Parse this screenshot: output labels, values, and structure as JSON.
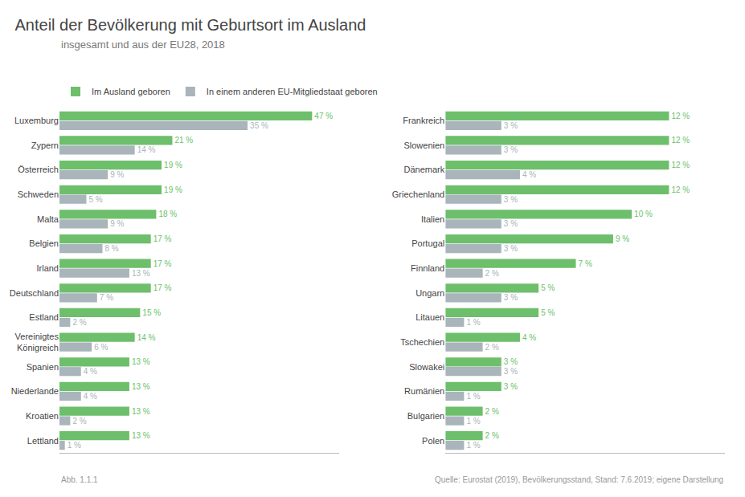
{
  "chart_data": [
    {
      "type": "bar",
      "orientation": "horizontal",
      "title": "Anteil der Bevölkerung mit Geburtsort im Ausland",
      "subtitle": "insgesamt und aus der EU28, 2018",
      "annotations": [
        "Abb. 1.1.1",
        "Quelle: Eurostat (2019), Bevölkerungsstand, Stand: 7.6.2019; eigene Darstellung"
      ],
      "categories": [
        "Luxemburg",
        "Zypern",
        "Österreich",
        "Schweden",
        "Malta",
        "Belgien",
        "Irland",
        "Deutschland",
        "Estland",
        "Vereinigtes\nKönigreich",
        "Spanien",
        "Niederlande",
        "Kroatien",
        "Lettland"
      ],
      "series": [
        {
          "name": "Im Ausland geboren",
          "color": "#6dbf6b",
          "values": [
            47,
            21,
            19,
            19,
            18,
            17,
            17,
            17,
            15,
            14,
            13,
            13,
            13,
            13
          ],
          "value_labels": [
            "47 %",
            "21 %",
            "19 %",
            "19 %",
            "18 %",
            "17 %",
            "17 %",
            "17 %",
            "15 %",
            "14 %",
            "13 %",
            "13 %",
            "13 %",
            "13 %"
          ]
        },
        {
          "name": "In einem anderen EU-Mitgliedstaat geboren",
          "color": "#a9b4bb",
          "values": [
            35,
            14,
            9,
            5,
            9,
            8,
            13,
            7,
            2,
            6,
            4,
            4,
            2,
            1
          ],
          "value_labels": [
            "35 %",
            "14 %",
            "9 %",
            "5 %",
            "9 %",
            "8 %",
            "13 %",
            "7 %",
            "2 %",
            "6 %",
            "4 %",
            "4 %",
            "2 %",
            "1 %"
          ]
        }
      ],
      "xlim": [
        0,
        52
      ],
      "grid": false,
      "legend": "top",
      "data_labels": true,
      "tick_labels": "y"
    },
    {
      "type": "bar",
      "orientation": "horizontal",
      "categories": [
        "Frankreich",
        "Slowenien",
        "Dänemark",
        "Griechenland",
        "Italien",
        "Portugal",
        "Finnland",
        "Ungarn",
        "Litauen",
        "Tschechien",
        "Slowakei",
        "Rumänien",
        "Bulgarien",
        "Polen"
      ],
      "series": [
        {
          "name": "Im Ausland geboren",
          "color": "#6dbf6b",
          "values": [
            12,
            12,
            12,
            12,
            10,
            9,
            7,
            5,
            5,
            4,
            3,
            3,
            2,
            2
          ],
          "value_labels": [
            "12 %",
            "12 %",
            "12 %",
            "12 %",
            "10 %",
            "9 %",
            "7 %",
            "5 %",
            "5 %",
            "4 %",
            "3 %",
            "3 %",
            "2 %",
            "2 %"
          ]
        },
        {
          "name": "In einem anderen EU-Mitgliedstaat geboren",
          "color": "#a9b4bb",
          "values": [
            3,
            3,
            4,
            3,
            3,
            3,
            2,
            3,
            1,
            2,
            3,
            1,
            1,
            1
          ],
          "value_labels": [
            "3 %",
            "3 %",
            "4 %",
            "3 %",
            "3 %",
            "3 %",
            "2 %",
            "3 %",
            "1 %",
            "2 %",
            "3 %",
            "1 %",
            "1 %",
            "1 %"
          ]
        }
      ],
      "xlim": [
        0,
        15
      ],
      "grid": false,
      "data_labels": true,
      "tick_labels": "y"
    }
  ]
}
